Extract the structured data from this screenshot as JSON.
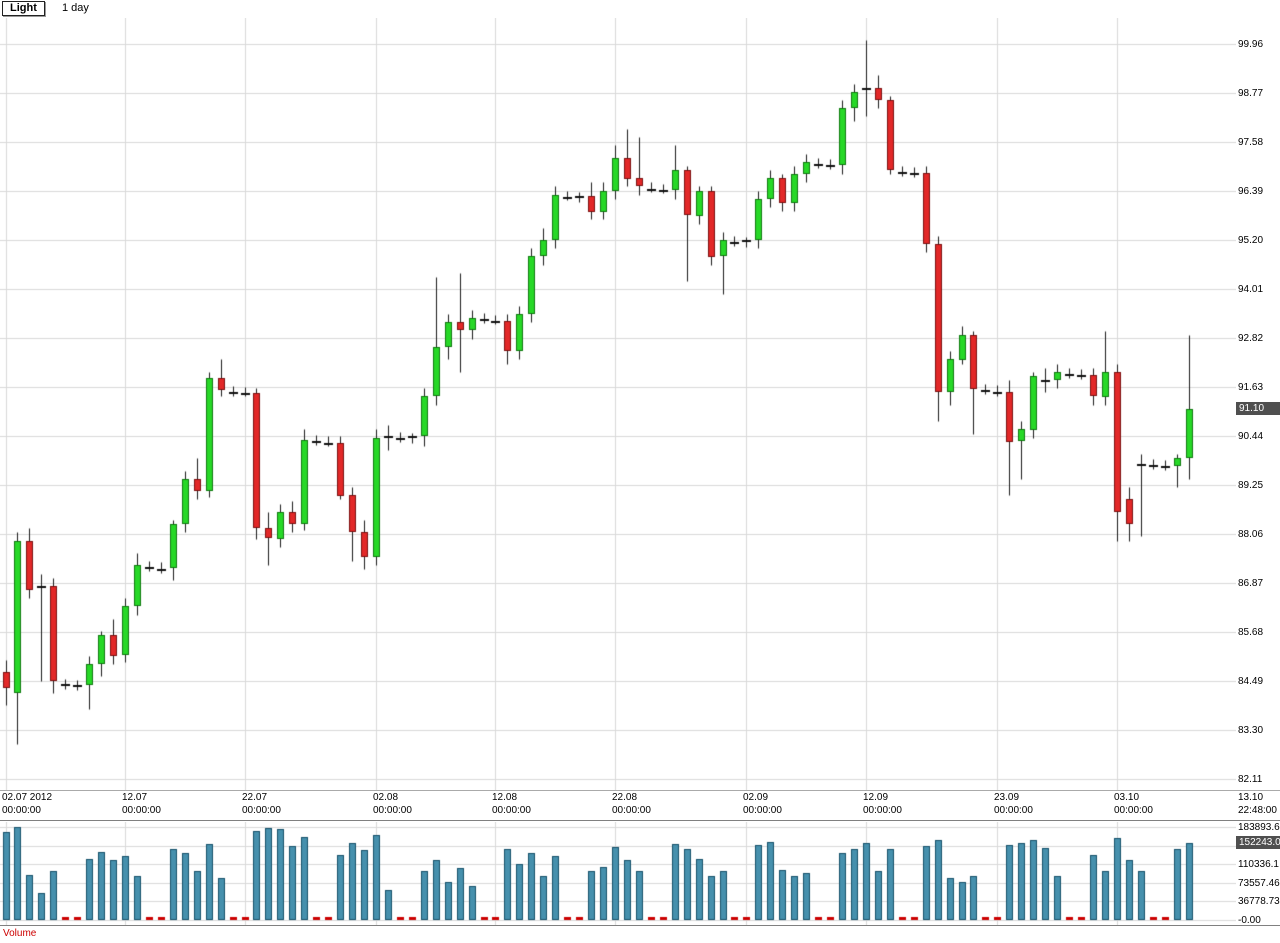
{
  "header": {
    "symbol": "Light",
    "timeframe": "1 day"
  },
  "price_axis": {
    "labels": [
      "99.96",
      "98.77",
      "97.58",
      "96.39",
      "95.20",
      "94.01",
      "92.82",
      "91.63",
      "90.44",
      "89.25",
      "88.06",
      "86.87",
      "85.68",
      "84.49",
      "83.30",
      "82.11"
    ],
    "max": 99.96,
    "min": 82.11,
    "step": 1.19,
    "current_price": "91.10",
    "current_price_value": 91.1
  },
  "time_axis": {
    "labels": [
      {
        "date": "02.07 2012",
        "time": "00:00:00",
        "index": 0
      },
      {
        "date": "12.07",
        "time": "00:00:00",
        "index": 10
      },
      {
        "date": "22.07",
        "time": "00:00:00",
        "index": 20
      },
      {
        "date": "02.08",
        "time": "00:00:00",
        "index": 31
      },
      {
        "date": "12.08",
        "time": "00:00:00",
        "index": 41
      },
      {
        "date": "22.08",
        "time": "00:00:00",
        "index": 51
      },
      {
        "date": "02.09",
        "time": "00:00:00",
        "index": 62
      },
      {
        "date": "12.09",
        "time": "00:00:00",
        "index": 72
      },
      {
        "date": "23.09",
        "time": "00:00:00",
        "index": 83
      },
      {
        "date": "03.10",
        "time": "00:00:00",
        "index": 93
      }
    ],
    "corner": {
      "date": "13.10",
      "time": "22:48:00"
    }
  },
  "volume_axis": {
    "labels": [
      {
        "text": "183893.6",
        "value": 183893.65
      },
      {
        "text": "110336.1",
        "value": 110336.19
      },
      {
        "text": "73557.46",
        "value": 73557.46
      },
      {
        "text": "36778.73",
        "value": 36778.73
      },
      {
        "text": "-0.00",
        "value": 0
      }
    ],
    "max": 183893.65,
    "current_volume": "152243.0",
    "current_volume_value": 152243.0
  },
  "volume_pane": {
    "label": "Volume"
  },
  "colors": {
    "up_fill": "#27d827",
    "up_stroke": "#0e7a0e",
    "down_fill": "#e22828",
    "down_stroke": "#7c0f0f",
    "wick": "#1a1a1a",
    "doji": "#111111",
    "grid": "#d9d9d9",
    "volume_fill": "#4690ad",
    "volume_stroke": "#14506a",
    "weekend_volume": "#cc0000",
    "badge_bg": "#4f4f4f",
    "volume_label": "#cc0000",
    "frame": "#808080"
  },
  "chart_data": {
    "type": "candlestick",
    "symbol": "Light",
    "interval": "1 day",
    "start_date": "02.07.2012",
    "price_range": [
      82.11,
      99.96
    ],
    "volume_range": [
      0,
      183893.65
    ],
    "candle_format": [
      "open",
      "high",
      "low",
      "close",
      "volume"
    ],
    "candles": [
      [
        84.7,
        85.0,
        83.9,
        84.3,
        174358
      ],
      [
        84.2,
        88.1,
        82.95,
        87.9,
        183894
      ],
      [
        87.9,
        88.2,
        86.5,
        86.7,
        89214
      ],
      [
        86.7,
        87.1,
        84.5,
        86.8,
        52830
      ],
      [
        86.8,
        87.0,
        84.2,
        84.5,
        97412
      ],
      [
        84.45,
        84.55,
        84.3,
        84.42,
        412
      ],
      [
        84.42,
        84.52,
        84.28,
        84.4,
        368
      ],
      [
        84.4,
        85.1,
        83.8,
        84.9,
        121540
      ],
      [
        84.9,
        85.7,
        84.6,
        85.6,
        134980
      ],
      [
        85.6,
        86.0,
        84.9,
        85.1,
        118230
      ],
      [
        85.1,
        86.5,
        84.95,
        86.3,
        126410
      ],
      [
        86.3,
        87.6,
        86.1,
        87.3,
        87120
      ],
      [
        87.28,
        87.4,
        87.15,
        87.25,
        423
      ],
      [
        87.25,
        87.38,
        87.12,
        87.22,
        377
      ],
      [
        87.22,
        88.4,
        86.95,
        88.3,
        140980
      ],
      [
        88.3,
        89.6,
        88.1,
        89.4,
        131760
      ],
      [
        89.4,
        89.9,
        88.9,
        89.1,
        96840
      ],
      [
        89.1,
        92.0,
        88.95,
        91.85,
        149320
      ],
      [
        91.85,
        92.3,
        91.4,
        91.55,
        83910
      ],
      [
        91.55,
        91.65,
        91.42,
        91.52,
        447
      ],
      [
        91.52,
        91.62,
        91.4,
        91.48,
        401
      ],
      [
        91.48,
        91.6,
        87.95,
        88.2,
        176890
      ],
      [
        88.2,
        88.6,
        87.3,
        87.95,
        181230
      ],
      [
        87.95,
        88.8,
        87.75,
        88.6,
        179540
      ],
      [
        88.6,
        88.85,
        88.1,
        88.3,
        147210
      ],
      [
        88.3,
        90.6,
        88.15,
        90.35,
        164830
      ],
      [
        90.35,
        90.46,
        90.22,
        90.32,
        498
      ],
      [
        90.32,
        90.43,
        90.2,
        90.28,
        415
      ],
      [
        90.28,
        90.45,
        88.9,
        89.0,
        127640
      ],
      [
        89.0,
        89.2,
        87.4,
        88.1,
        151980
      ],
      [
        88.1,
        88.4,
        87.2,
        87.5,
        139210
      ],
      [
        87.5,
        90.6,
        87.3,
        90.4,
        168730
      ],
      [
        90.4,
        90.7,
        90.1,
        90.45,
        59840
      ],
      [
        90.42,
        90.54,
        90.3,
        90.4,
        392
      ],
      [
        90.4,
        90.52,
        90.28,
        90.44,
        356
      ],
      [
        90.44,
        91.6,
        90.2,
        91.4,
        97210
      ],
      [
        91.4,
        94.3,
        91.2,
        92.6,
        118760
      ],
      [
        92.6,
        93.4,
        92.3,
        93.2,
        74320
      ],
      [
        93.2,
        94.4,
        92.0,
        93.0,
        102450
      ],
      [
        93.0,
        93.5,
        92.8,
        93.3,
        66310
      ],
      [
        93.3,
        93.42,
        93.18,
        93.27,
        433
      ],
      [
        93.27,
        93.38,
        93.15,
        93.24,
        389
      ],
      [
        93.24,
        93.4,
        92.2,
        92.5,
        141230
      ],
      [
        92.5,
        93.6,
        92.3,
        93.4,
        109870
      ],
      [
        93.4,
        95.0,
        93.2,
        94.8,
        132540
      ],
      [
        94.8,
        95.5,
        94.6,
        95.2,
        87650
      ],
      [
        95.2,
        96.5,
        95.0,
        96.3,
        126730
      ],
      [
        96.28,
        96.4,
        96.16,
        96.25,
        421
      ],
      [
        96.25,
        96.37,
        96.13,
        96.28,
        366
      ],
      [
        96.28,
        96.6,
        95.7,
        95.9,
        96420
      ],
      [
        95.9,
        96.6,
        95.7,
        96.4,
        104310
      ],
      [
        96.4,
        97.5,
        96.2,
        97.2,
        143980
      ],
      [
        97.2,
        97.9,
        96.5,
        96.7,
        118540
      ],
      [
        96.7,
        97.7,
        96.3,
        96.5,
        97230
      ],
      [
        96.48,
        96.6,
        96.36,
        96.45,
        402
      ],
      [
        96.45,
        96.57,
        96.33,
        96.42,
        371
      ],
      [
        96.42,
        97.5,
        96.2,
        96.9,
        151230
      ],
      [
        96.9,
        97.0,
        94.2,
        95.8,
        139840
      ],
      [
        95.8,
        96.5,
        95.6,
        96.4,
        121310
      ],
      [
        96.4,
        96.5,
        94.6,
        94.8,
        87420
      ],
      [
        94.8,
        95.4,
        93.9,
        95.2,
        96210
      ],
      [
        95.18,
        95.3,
        95.06,
        95.16,
        418
      ],
      [
        95.16,
        95.28,
        95.04,
        95.2,
        385
      ],
      [
        95.2,
        96.4,
        95.0,
        96.2,
        148760
      ],
      [
        96.2,
        96.9,
        96.0,
        96.7,
        153420
      ],
      [
        96.7,
        96.8,
        95.9,
        96.1,
        99840
      ],
      [
        96.1,
        97.0,
        95.9,
        96.8,
        87210
      ],
      [
        96.8,
        97.3,
        96.6,
        97.1,
        93540
      ],
      [
        97.08,
        97.2,
        96.96,
        97.05,
        428
      ],
      [
        97.05,
        97.17,
        96.93,
        97.02,
        390
      ],
      [
        97.02,
        98.6,
        96.8,
        98.4,
        132480
      ],
      [
        98.4,
        99.0,
        98.1,
        98.8,
        141290
      ],
      [
        98.8,
        100.05,
        98.2,
        98.9,
        151830
      ],
      [
        98.9,
        99.2,
        98.4,
        98.6,
        97240
      ],
      [
        98.6,
        98.7,
        96.8,
        96.9,
        139520
      ],
      [
        96.88,
        97.0,
        96.76,
        96.85,
        412
      ],
      [
        96.85,
        96.97,
        96.73,
        96.82,
        377
      ],
      [
        96.82,
        97.0,
        94.9,
        95.1,
        146830
      ],
      [
        95.1,
        95.3,
        90.8,
        91.5,
        158210
      ],
      [
        91.5,
        92.5,
        91.2,
        92.3,
        83940
      ],
      [
        92.3,
        93.1,
        92.2,
        92.9,
        74210
      ],
      [
        92.9,
        93.0,
        90.5,
        91.6,
        86530
      ],
      [
        91.58,
        91.7,
        91.45,
        91.55,
        401
      ],
      [
        91.55,
        91.67,
        91.42,
        91.52,
        389
      ],
      [
        91.52,
        91.8,
        89.0,
        90.3,
        149230
      ],
      [
        90.3,
        90.8,
        89.4,
        90.6,
        151870
      ],
      [
        90.6,
        92.0,
        90.4,
        91.9,
        157420
      ],
      [
        91.9,
        92.1,
        91.5,
        91.8,
        143210
      ],
      [
        91.8,
        92.2,
        91.6,
        92.0,
        87940
      ],
      [
        91.98,
        92.1,
        91.86,
        91.95,
        399
      ],
      [
        91.95,
        92.07,
        91.83,
        91.92,
        362
      ],
      [
        91.92,
        92.1,
        91.2,
        91.4,
        128430
      ],
      [
        91.4,
        93.0,
        91.2,
        92.0,
        96830
      ],
      [
        92.0,
        92.2,
        87.9,
        88.6,
        161240
      ],
      [
        88.9,
        89.2,
        87.9,
        88.3,
        118730
      ],
      [
        89.8,
        90.0,
        88.0,
        89.75,
        97420
      ],
      [
        89.76,
        89.88,
        89.64,
        89.73,
        404
      ],
      [
        89.73,
        89.85,
        89.61,
        89.7,
        371
      ],
      [
        89.7,
        90.0,
        89.2,
        89.9,
        139870
      ],
      [
        89.9,
        92.9,
        89.4,
        91.1,
        152243
      ]
    ]
  }
}
